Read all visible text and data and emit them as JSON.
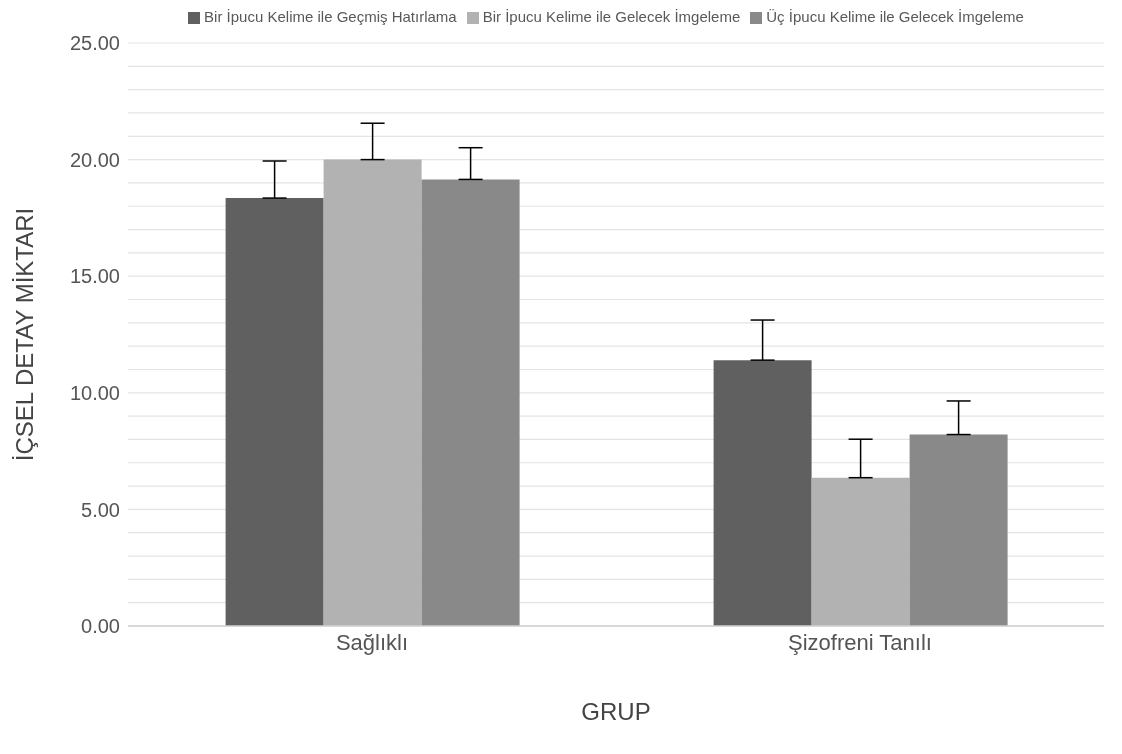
{
  "chart_data": {
    "type": "bar",
    "xlabel": "GRUP",
    "ylabel": "İÇSEL DETAY MİKTARI",
    "categories": [
      "Sağlıklı",
      "Şizofreni Tanılı"
    ],
    "series": [
      {
        "name": "Bir İpucu Kelime ile Geçmiş Hatırlama",
        "color": "#606060",
        "values": [
          18.35,
          11.4
        ],
        "errors": [
          [
            18.35,
            19.94
          ],
          [
            11.4,
            13.12
          ]
        ]
      },
      {
        "name": "Bir İpucu Kelime ile Gelecek İmgeleme",
        "color": "#b2b2b2",
        "values": [
          20.0,
          6.36
        ],
        "errors": [
          [
            20.0,
            21.56
          ],
          [
            6.36,
            8.01
          ]
        ]
      },
      {
        "name": "Üç İpucu Kelime ile Gelecek İmgeleme",
        "color": "#898989",
        "values": [
          19.15,
          8.21
        ],
        "errors": [
          [
            19.15,
            20.51
          ],
          [
            8.21,
            9.65
          ]
        ]
      }
    ],
    "ylim": [
      0,
      25
    ],
    "yticks": [
      {
        "value": 0,
        "label": "0.00"
      },
      {
        "value": 1,
        "label": null
      },
      {
        "value": 2,
        "label": null
      },
      {
        "value": 3,
        "label": null
      },
      {
        "value": 4,
        "label": null
      },
      {
        "value": 5,
        "label": "5.00"
      },
      {
        "value": 6,
        "label": null
      },
      {
        "value": 7,
        "label": null
      },
      {
        "value": 8,
        "label": null
      },
      {
        "value": 9,
        "label": null
      },
      {
        "value": 10,
        "label": "10.00"
      },
      {
        "value": 11,
        "label": null
      },
      {
        "value": 12,
        "label": null
      },
      {
        "value": 13,
        "label": null
      },
      {
        "value": 14,
        "label": null
      },
      {
        "value": 15,
        "label": "15.00"
      },
      {
        "value": 16,
        "label": null
      },
      {
        "value": 17,
        "label": null
      },
      {
        "value": 18,
        "label": null
      },
      {
        "value": 19,
        "label": null
      },
      {
        "value": 20,
        "label": "20.00"
      },
      {
        "value": 21,
        "label": null
      },
      {
        "value": 22,
        "label": null
      },
      {
        "value": 23,
        "label": null
      },
      {
        "value": 24,
        "label": null
      },
      {
        "value": 25,
        "label": "25.00"
      }
    ],
    "grid": "y",
    "legend": "top"
  }
}
